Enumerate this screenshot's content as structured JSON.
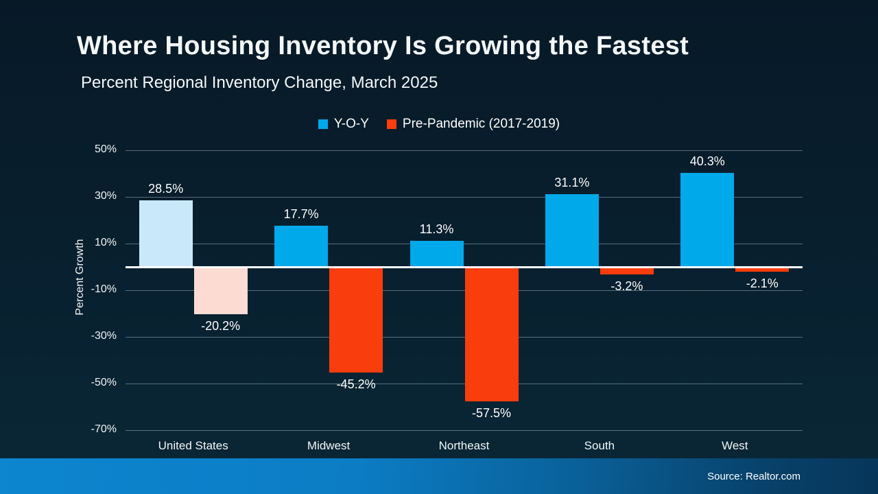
{
  "slide": {
    "title": "Where Housing Inventory Is Growing the Fastest",
    "subtitle": "Percent Regional Inventory Change, March 2025",
    "source": "Source: Realtor.com"
  },
  "legend": {
    "items": [
      {
        "label": "Y-O-Y",
        "color": "#00a9e9"
      },
      {
        "label": "Pre-Pandemic (2017-2019)",
        "color": "#f93d0d"
      }
    ]
  },
  "chart_data": {
    "type": "bar",
    "title": "Where Housing Inventory Is Growing the Fastest",
    "subtitle": "Percent Regional Inventory Change, March 2025",
    "categories": [
      "United States",
      "Midwest",
      "Northeast",
      "South",
      "West"
    ],
    "series": [
      {
        "name": "Y-O-Y",
        "values": [
          28.5,
          17.7,
          11.3,
          31.1,
          40.3
        ],
        "color": "#00a9e9",
        "muted_color": "#c9e9fb"
      },
      {
        "name": "Pre-Pandemic (2017-2019)",
        "values": [
          -20.2,
          -45.2,
          -57.5,
          -3.2,
          -2.1
        ],
        "color": "#f93d0d",
        "muted_color": "#fcdcd2"
      }
    ],
    "muted_categories": [
      "United States"
    ],
    "value_label_suffix": "%",
    "xlabel": "",
    "ylabel": "Percent Growth",
    "yticks": [
      50,
      30,
      10,
      -10,
      -30,
      -50,
      -70
    ],
    "ytick_suffix": "%",
    "ylim": [
      -75,
      55
    ],
    "grid": true,
    "legend_position": "top",
    "zero_line": true,
    "source": "Source: Realtor.com"
  }
}
